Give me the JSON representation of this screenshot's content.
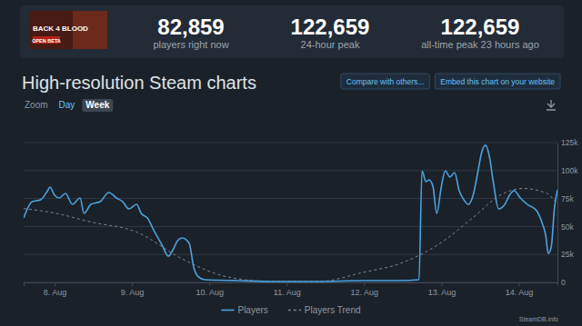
{
  "header": {
    "thumbnail": [
      "BACK 4 BLOOD",
      "OPEN BETA"
    ],
    "stats": [
      {
        "value": "82,859",
        "label": "players right now"
      },
      {
        "value": "122,659",
        "label": "24-hour peak"
      },
      {
        "value": "122,659",
        "label": "all-time peak 23 hours ago"
      }
    ]
  },
  "title": "High-resolution Steam charts",
  "buttons": [
    "Compare with others...",
    "Embed this chart on your website"
  ],
  "zoom": {
    "label": "Zoom",
    "options": [
      "Day",
      "Week"
    ]
  },
  "footer": "SteamDB.info",
  "chart_data": {
    "type": "line",
    "series": [
      {
        "name": "Players",
        "color": "#4aa3df",
        "line_style": "solid",
        "x": [
          7.6,
          7.71,
          7.82,
          7.91,
          7.94,
          8.0,
          8.06,
          8.14,
          8.23,
          8.33,
          8.38,
          8.47,
          8.59,
          8.7,
          8.8,
          8.88,
          8.96,
          9.06,
          9.12,
          9.2,
          9.29,
          9.39,
          9.47,
          9.53,
          9.59,
          9.65,
          9.74,
          9.8,
          9.86,
          9.94,
          10.35,
          10.82,
          11.41,
          11.99,
          12.47,
          12.71,
          12.75,
          12.8,
          12.84,
          12.89,
          12.94,
          13.0,
          13.05,
          13.11,
          13.17,
          13.23,
          13.29,
          13.35,
          13.41,
          13.47,
          13.52,
          13.57,
          13.62,
          13.67,
          13.74,
          13.82,
          13.88,
          13.94,
          14.02,
          14.11,
          14.23,
          14.3,
          14.35,
          14.38,
          14.42,
          14.46,
          14.5
        ],
        "values": [
          57600,
          72200,
          73900,
          82000,
          85200,
          77900,
          75500,
          79500,
          69800,
          75500,
          61700,
          69800,
          72200,
          80400,
          75500,
          72200,
          65700,
          69800,
          61700,
          57600,
          45500,
          33300,
          23500,
          29200,
          37300,
          39800,
          34900,
          13000,
          4900,
          2400,
          1600,
          800,
          800,
          1600,
          1600,
          2400,
          99800,
          90100,
          91700,
          86000,
          61700,
          86000,
          99800,
          94200,
          98200,
          82000,
          73900,
          69800,
          77900,
          98200,
          116100,
          122659,
          112800,
          90100,
          65700,
          69800,
          77900,
          82000,
          75500,
          69800,
          64100,
          53600,
          41400,
          26000,
          31700,
          65700,
          82859
        ]
      },
      {
        "name": "Players Trend",
        "color": "#7b8593",
        "line_style": "dashed",
        "x": [
          7.6,
          8.0,
          8.47,
          9.06,
          9.65,
          10.23,
          10.82,
          11.41,
          11.99,
          12.47,
          12.94,
          13.41,
          13.76,
          14.05,
          14.35,
          14.5
        ],
        "values": [
          66000,
          62000,
          54000,
          45000,
          21000,
          5000,
          800,
          800,
          9000,
          17000,
          33000,
          58000,
          78000,
          84000,
          80000,
          70000
        ]
      }
    ],
    "xlim": [
      7.6,
      14.5
    ],
    "xticks": [
      {
        "value": 8,
        "label": "8. Aug"
      },
      {
        "value": 9,
        "label": "9. Aug"
      },
      {
        "value": 10,
        "label": "10. Aug"
      },
      {
        "value": 11,
        "label": "11. Aug"
      },
      {
        "value": 12,
        "label": "12. Aug"
      },
      {
        "value": 13,
        "label": "13. Aug"
      },
      {
        "value": 14,
        "label": "14. Aug"
      }
    ],
    "ylim": [
      0,
      125000
    ],
    "yticks": [
      0,
      {
        "value": 25000,
        "label": "25k"
      },
      {
        "value": 50000,
        "label": "50k"
      },
      {
        "value": 75000,
        "label": "75k"
      },
      {
        "value": 100000,
        "label": "100k"
      },
      {
        "value": 125000,
        "label": "125k"
      }
    ],
    "grid": true,
    "legend": "bottom"
  }
}
